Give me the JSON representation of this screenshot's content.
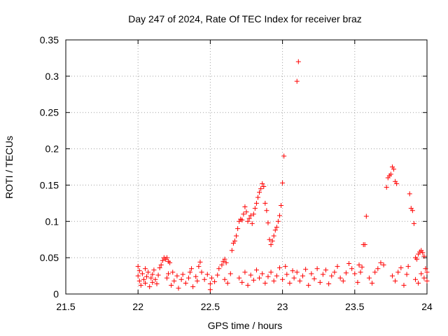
{
  "chart_data": {
    "type": "scatter",
    "title": "Day 247 of 2024, Rate Of TEC Index for receiver braz",
    "xlabel": "GPS time / hours",
    "ylabel": "ROTI / TECUs",
    "xlim": [
      21.5,
      24
    ],
    "ylim": [
      0,
      0.35
    ],
    "xticks": [
      "21.5",
      "22",
      "22.5",
      "23",
      "23.5",
      "24"
    ],
    "yticks": [
      "0",
      "0.05",
      "0.1",
      "0.15",
      "0.2",
      "0.25",
      "0.3",
      "0.35"
    ],
    "grid": true,
    "marker": "+",
    "color": "#ff0000",
    "series": [
      {
        "points": [
          [
            22.0,
            0.038
          ],
          [
            22.0,
            0.025
          ],
          [
            22.01,
            0.018
          ],
          [
            22.01,
            0.032
          ],
          [
            22.02,
            0.012
          ],
          [
            22.03,
            0.028
          ],
          [
            22.04,
            0.02
          ],
          [
            22.05,
            0.035
          ],
          [
            22.05,
            0.015
          ],
          [
            22.06,
            0.024
          ],
          [
            22.07,
            0.03
          ],
          [
            22.08,
            0.01
          ],
          [
            22.09,
            0.022
          ],
          [
            22.1,
            0.027
          ],
          [
            22.1,
            0.016
          ],
          [
            22.11,
            0.033
          ],
          [
            22.12,
            0.02
          ],
          [
            22.13,
            0.014
          ],
          [
            22.14,
            0.026
          ],
          [
            22.15,
            0.036
          ],
          [
            22.16,
            0.04
          ],
          [
            22.17,
            0.046
          ],
          [
            22.18,
            0.05
          ],
          [
            22.19,
            0.048
          ],
          [
            22.2,
            0.05
          ],
          [
            22.21,
            0.045
          ],
          [
            22.22,
            0.043
          ],
          [
            22.2,
            0.022
          ],
          [
            22.21,
            0.028
          ],
          [
            22.23,
            0.012
          ],
          [
            22.24,
            0.03
          ],
          [
            22.25,
            0.018
          ],
          [
            22.27,
            0.025
          ],
          [
            22.28,
            0.008
          ],
          [
            22.3,
            0.02
          ],
          [
            22.31,
            0.027
          ],
          [
            22.33,
            0.015
          ],
          [
            22.35,
            0.022
          ],
          [
            22.36,
            0.03
          ],
          [
            22.37,
            0.035
          ],
          [
            22.38,
            0.01
          ],
          [
            22.4,
            0.024
          ],
          [
            22.41,
            0.018
          ],
          [
            22.42,
            0.038
          ],
          [
            22.43,
            0.044
          ],
          [
            22.44,
            0.03
          ],
          [
            22.46,
            0.02
          ],
          [
            22.48,
            0.027
          ],
          [
            22.5,
            0.014
          ],
          [
            22.5,
            0.006
          ],
          [
            22.51,
            0.022
          ],
          [
            22.53,
            0.017
          ],
          [
            22.55,
            0.026
          ],
          [
            22.56,
            0.035
          ],
          [
            22.58,
            0.04
          ],
          [
            22.59,
            0.045
          ],
          [
            22.6,
            0.048
          ],
          [
            22.61,
            0.043
          ],
          [
            22.6,
            0.02
          ],
          [
            22.62,
            0.015
          ],
          [
            22.64,
            0.028
          ],
          [
            22.65,
            0.06
          ],
          [
            22.66,
            0.07
          ],
          [
            22.67,
            0.073
          ],
          [
            22.68,
            0.08
          ],
          [
            22.69,
            0.09
          ],
          [
            22.7,
            0.1
          ],
          [
            22.71,
            0.103
          ],
          [
            22.72,
            0.102
          ],
          [
            22.73,
            0.11
          ],
          [
            22.74,
            0.12
          ],
          [
            22.75,
            0.113
          ],
          [
            22.76,
            0.1
          ],
          [
            22.77,
            0.104
          ],
          [
            22.78,
            0.108
          ],
          [
            22.79,
            0.097
          ],
          [
            22.8,
            0.11
          ],
          [
            22.81,
            0.118
          ],
          [
            22.82,
            0.125
          ],
          [
            22.83,
            0.133
          ],
          [
            22.84,
            0.14
          ],
          [
            22.85,
            0.145
          ],
          [
            22.86,
            0.152
          ],
          [
            22.87,
            0.148
          ],
          [
            22.88,
            0.125
          ],
          [
            22.89,
            0.115
          ],
          [
            22.9,
            0.098
          ],
          [
            22.91,
            0.075
          ],
          [
            22.92,
            0.068
          ],
          [
            22.93,
            0.073
          ],
          [
            22.94,
            0.08
          ],
          [
            22.95,
            0.088
          ],
          [
            22.96,
            0.092
          ],
          [
            22.97,
            0.1
          ],
          [
            22.98,
            0.108
          ],
          [
            22.99,
            0.122
          ],
          [
            23.0,
            0.153
          ],
          [
            23.01,
            0.19
          ],
          [
            22.7,
            0.022
          ],
          [
            22.72,
            0.016
          ],
          [
            22.74,
            0.03
          ],
          [
            22.76,
            0.012
          ],
          [
            22.78,
            0.026
          ],
          [
            22.8,
            0.019
          ],
          [
            22.82,
            0.033
          ],
          [
            22.84,
            0.022
          ],
          [
            22.86,
            0.028
          ],
          [
            22.88,
            0.015
          ],
          [
            22.9,
            0.024
          ],
          [
            22.92,
            0.03
          ],
          [
            22.94,
            0.018
          ],
          [
            22.96,
            0.025
          ],
          [
            22.98,
            0.036
          ],
          [
            23.0,
            0.02
          ],
          [
            23.02,
            0.038
          ],
          [
            23.03,
            0.027
          ],
          [
            23.05,
            0.015
          ],
          [
            23.07,
            0.032
          ],
          [
            23.08,
            0.022
          ],
          [
            23.1,
            0.293
          ],
          [
            23.11,
            0.32
          ],
          [
            23.1,
            0.03
          ],
          [
            23.12,
            0.018
          ],
          [
            23.14,
            0.025
          ],
          [
            23.16,
            0.034
          ],
          [
            23.18,
            0.012
          ],
          [
            23.2,
            0.028
          ],
          [
            23.22,
            0.021
          ],
          [
            23.24,
            0.035
          ],
          [
            23.26,
            0.016
          ],
          [
            23.28,
            0.027
          ],
          [
            23.3,
            0.033
          ],
          [
            23.32,
            0.014
          ],
          [
            23.34,
            0.025
          ],
          [
            23.36,
            0.03
          ],
          [
            23.38,
            0.038
          ],
          [
            23.4,
            0.022
          ],
          [
            23.42,
            0.018
          ],
          [
            23.44,
            0.029
          ],
          [
            23.46,
            0.042
          ],
          [
            23.48,
            0.035
          ],
          [
            23.5,
            0.028
          ],
          [
            23.52,
            0.016
          ],
          [
            23.53,
            0.04
          ],
          [
            23.54,
            0.03
          ],
          [
            23.55,
            0.037
          ],
          [
            23.56,
            0.068
          ],
          [
            23.57,
            0.068
          ],
          [
            23.58,
            0.107
          ],
          [
            23.6,
            0.022
          ],
          [
            23.62,
            0.015
          ],
          [
            23.64,
            0.03
          ],
          [
            23.66,
            0.035
          ],
          [
            23.68,
            0.043
          ],
          [
            23.7,
            0.04
          ],
          [
            23.72,
            0.147
          ],
          [
            23.73,
            0.16
          ],
          [
            23.74,
            0.163
          ],
          [
            23.75,
            0.165
          ],
          [
            23.76,
            0.175
          ],
          [
            23.77,
            0.172
          ],
          [
            23.78,
            0.155
          ],
          [
            23.79,
            0.152
          ],
          [
            23.76,
            0.025
          ],
          [
            23.78,
            0.018
          ],
          [
            23.8,
            0.03
          ],
          [
            23.82,
            0.036
          ],
          [
            23.84,
            0.012
          ],
          [
            23.86,
            0.027
          ],
          [
            23.87,
            0.038
          ],
          [
            23.88,
            0.138
          ],
          [
            23.89,
            0.118
          ],
          [
            23.9,
            0.115
          ],
          [
            23.91,
            0.097
          ],
          [
            23.92,
            0.05
          ],
          [
            23.93,
            0.048
          ],
          [
            23.94,
            0.055
          ],
          [
            23.95,
            0.058
          ],
          [
            23.96,
            0.06
          ],
          [
            23.97,
            0.057
          ],
          [
            23.98,
            0.052
          ],
          [
            23.92,
            0.02
          ],
          [
            23.94,
            0.015
          ],
          [
            23.96,
            0.028
          ],
          [
            23.98,
            0.022
          ],
          [
            23.99,
            0.035
          ],
          [
            24.0,
            0.03
          ],
          [
            24.0,
            0.018
          ]
        ]
      }
    ]
  }
}
